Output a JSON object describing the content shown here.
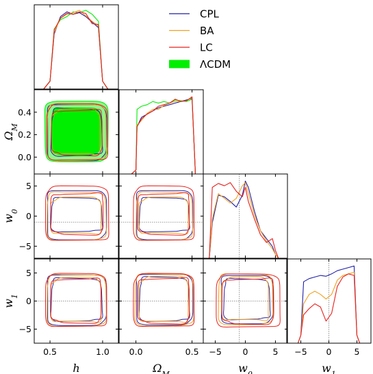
{
  "chart_data": {
    "type": "corner",
    "parameters": [
      {
        "key": "h",
        "label": "h",
        "range": [
          0.35,
          1.15
        ],
        "ticks": [
          0.5,
          1.0
        ],
        "tick_labels": [
          "0.5",
          "1.0"
        ],
        "fiducial": null
      },
      {
        "key": "om",
        "label": "Ω_M",
        "range": [
          -0.15,
          0.6
        ],
        "ticks": [
          0.0,
          0.5
        ],
        "tick_labels": [
          "0.0",
          "0.5"
        ],
        "y_ticks": [
          0.0,
          0.2,
          0.4
        ],
        "y_tick_labels": [
          "0.0",
          "0.2",
          "0.4"
        ],
        "fiducial": null
      },
      {
        "key": "w0",
        "label": "w_0",
        "range": [
          -7.0,
          7.0
        ],
        "ticks": [
          -5,
          0,
          5
        ],
        "tick_labels": [
          "−5",
          "0",
          "5"
        ],
        "fiducial": -1.0
      },
      {
        "key": "w1",
        "label": "w_1",
        "range": [
          -7.5,
          7.5
        ],
        "ticks": [
          -5,
          0,
          5
        ],
        "tick_labels": [
          "−5",
          "0",
          "5"
        ],
        "fiducial": 0.0
      }
    ],
    "series": [
      {
        "name": "CPL",
        "color": "#1f1fa8",
        "style": "line"
      },
      {
        "name": "BA",
        "color": "#f0a020",
        "style": "line"
      },
      {
        "name": "LC",
        "color": "#e8201c",
        "style": "line"
      },
      {
        "name": "ΛCDM",
        "color": "#00ee00",
        "style": "filled"
      }
    ],
    "marginals": {
      "h": {
        "x": [
          0.44,
          0.5,
          0.54,
          0.6,
          0.66,
          0.72,
          0.78,
          0.84,
          0.9,
          0.96,
          1.0,
          1.05
        ],
        "CPL": [
          0.0,
          0.1,
          0.7,
          0.92,
          0.98,
          0.95,
          0.97,
          0.92,
          0.85,
          0.78,
          0.1,
          0.0
        ],
        "BA": [
          0.0,
          0.1,
          0.72,
          0.9,
          0.95,
          0.97,
          1.0,
          0.93,
          0.86,
          0.8,
          0.1,
          0.0
        ],
        "LC": [
          0.0,
          0.1,
          0.75,
          0.9,
          0.96,
          0.95,
          0.98,
          0.96,
          0.83,
          0.82,
          0.1,
          0.0
        ],
        "ΛCDM": [
          0.0,
          0.1,
          0.76,
          0.88,
          0.92,
          0.98,
          0.97,
          1.0,
          0.95,
          0.86,
          0.1,
          0.0
        ]
      },
      "om": {
        "x": [
          -0.04,
          0.0,
          0.01,
          0.05,
          0.1,
          0.15,
          0.2,
          0.25,
          0.3,
          0.35,
          0.4,
          0.45,
          0.5,
          0.53
        ],
        "CPL": [
          0.0,
          0.05,
          0.6,
          0.72,
          0.76,
          0.8,
          0.84,
          0.86,
          0.88,
          0.9,
          0.92,
          0.94,
          0.96,
          0.0
        ],
        "BA": [
          0.0,
          0.05,
          0.62,
          0.68,
          0.77,
          0.82,
          0.82,
          0.87,
          0.9,
          0.92,
          0.92,
          0.93,
          0.97,
          0.0
        ],
        "LC": [
          0.0,
          0.05,
          0.6,
          0.7,
          0.76,
          0.8,
          0.86,
          0.88,
          0.9,
          0.95,
          0.92,
          0.93,
          0.98,
          0.0
        ],
        "ΛCDM": [
          0.0,
          0.05,
          0.82,
          0.86,
          0.88,
          0.92,
          0.9,
          0.92,
          0.9,
          0.94,
          0.93,
          0.92,
          0.95,
          0.0
        ]
      },
      "w0": {
        "x": [
          -6.0,
          -5.5,
          -4.5,
          -3.5,
          -2.5,
          -1.5,
          -0.5,
          0.0,
          0.5,
          1.5,
          2.5,
          3.5,
          4.5,
          5.0,
          5.5
        ],
        "CPL": [
          0.0,
          0.45,
          0.8,
          0.78,
          0.72,
          0.65,
          0.8,
          0.98,
          0.9,
          0.6,
          0.35,
          0.25,
          0.15,
          0.05,
          0.0
        ],
        "BA": [
          0.0,
          0.5,
          0.82,
          0.76,
          0.7,
          0.76,
          0.92,
          0.96,
          0.82,
          0.55,
          0.35,
          0.22,
          0.12,
          0.05,
          0.0
        ],
        "LC": [
          0.0,
          0.9,
          0.95,
          0.92,
          0.96,
          0.85,
          0.78,
          0.9,
          0.72,
          0.5,
          0.3,
          0.2,
          0.25,
          0.1,
          0.0
        ]
      },
      "w1": {
        "x": [
          -5.5,
          -5.0,
          -4.5,
          -3.5,
          -2.5,
          -1.5,
          -0.5,
          0.5,
          1.5,
          2.5,
          3.5,
          4.5,
          5.0,
          5.5
        ],
        "CPL": [
          0.0,
          0.1,
          0.78,
          0.82,
          0.84,
          0.86,
          0.85,
          0.88,
          0.92,
          0.94,
          0.96,
          0.98,
          0.1,
          0.0
        ],
        "BA": [
          0.0,
          0.1,
          0.5,
          0.62,
          0.66,
          0.62,
          0.56,
          0.62,
          0.8,
          0.86,
          0.88,
          0.9,
          0.1,
          0.0
        ],
        "LC": [
          0.0,
          0.1,
          0.36,
          0.44,
          0.5,
          0.46,
          0.28,
          0.38,
          0.72,
          0.84,
          0.88,
          0.86,
          0.1,
          0.0
        ]
      }
    },
    "contours": {
      "om|h": {
        "CPL": {
          "c": [
            0.75,
            0.22
          ],
          "r1": [
            0.24,
            0.21
          ],
          "r2": [
            0.28,
            0.25
          ]
        },
        "BA": {
          "c": [
            0.75,
            0.22
          ],
          "r1": [
            0.23,
            0.2
          ],
          "r2": [
            0.28,
            0.25
          ]
        },
        "LC": {
          "c": [
            0.76,
            0.22
          ],
          "r1": [
            0.24,
            0.2
          ],
          "r2": [
            0.29,
            0.25
          ]
        },
        "ΛCDM": {
          "c": [
            0.75,
            0.23
          ],
          "r1": [
            0.23,
            0.21
          ],
          "r2": [
            0.3,
            0.27
          ]
        }
      },
      "w0|h": {
        "CPL": {
          "c": [
            0.75,
            0.2
          ],
          "r1": [
            0.24,
            2.8
          ],
          "r2": [
            0.28,
            4.1
          ]
        },
        "BA": {
          "c": [
            0.75,
            0.0
          ],
          "r1": [
            0.24,
            3.0
          ],
          "r2": [
            0.28,
            4.0
          ]
        },
        "LC": {
          "c": [
            0.76,
            0.4
          ],
          "r1": [
            0.25,
            3.4
          ],
          "r2": [
            0.3,
            4.5
          ]
        }
      },
      "w0|om": {
        "CPL": {
          "c": [
            0.25,
            0.2
          ],
          "r1": [
            0.22,
            2.8
          ],
          "r2": [
            0.25,
            4.1
          ]
        },
        "BA": {
          "c": [
            0.25,
            0.0
          ],
          "r1": [
            0.22,
            3.0
          ],
          "r2": [
            0.25,
            4.0
          ]
        },
        "LC": {
          "c": [
            0.25,
            0.4
          ],
          "r1": [
            0.23,
            3.4
          ],
          "r2": [
            0.27,
            4.5
          ]
        }
      },
      "w1|h": {
        "CPL": {
          "c": [
            0.75,
            0.2
          ],
          "r1": [
            0.24,
            3.8
          ],
          "r2": [
            0.28,
            4.5
          ]
        },
        "BA": {
          "c": [
            0.75,
            0.1
          ],
          "r1": [
            0.24,
            3.9
          ],
          "r2": [
            0.28,
            4.6
          ]
        },
        "LC": {
          "c": [
            0.75,
            0.1
          ],
          "r1": [
            0.24,
            3.9
          ],
          "r2": [
            0.29,
            4.7
          ]
        }
      },
      "w1|om": {
        "CPL": {
          "c": [
            0.25,
            0.3
          ],
          "r1": [
            0.22,
            3.9
          ],
          "r2": [
            0.25,
            4.5
          ]
        },
        "BA": {
          "c": [
            0.25,
            0.2
          ],
          "r1": [
            0.22,
            4.0
          ],
          "r2": [
            0.26,
            4.6
          ]
        },
        "LC": {
          "c": [
            0.25,
            0.1
          ],
          "r1": [
            0.23,
            4.0
          ],
          "r2": [
            0.27,
            4.7
          ]
        }
      },
      "w1|w0": {
        "CPL": {
          "c": [
            0.2,
            0.3
          ],
          "r1": [
            3.8,
            3.6
          ],
          "r2": [
            4.3,
            4.3
          ]
        },
        "BA": {
          "c": [
            0.0,
            0.3
          ],
          "r1": [
            3.9,
            3.8
          ],
          "r2": [
            4.5,
            4.5
          ]
        },
        "LC": {
          "c": [
            0.5,
            0.0
          ],
          "r1": [
            4.3,
            4.0
          ],
          "r2": [
            5.3,
            4.7
          ]
        }
      }
    },
    "legend": {
      "placement": "top-right"
    },
    "grid": false
  }
}
